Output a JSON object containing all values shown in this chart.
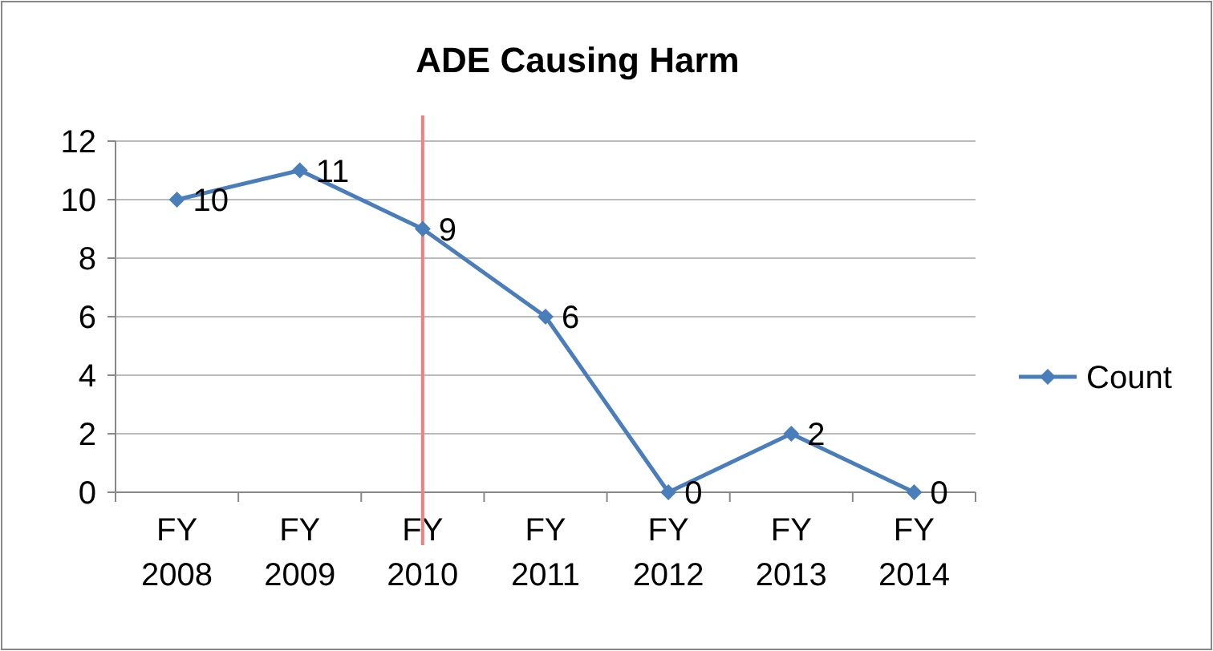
{
  "chart_data": {
    "type": "line",
    "title": "ADE Causing Harm",
    "categories": [
      "FY 2008",
      "FY 2009",
      "FY 2010",
      "FY 2011",
      "FY 2012",
      "FY 2013",
      "FY 2014"
    ],
    "series": [
      {
        "name": "Count",
        "color": "#4a7ebb",
        "values": [
          10,
          11,
          9,
          6,
          0,
          2,
          0
        ]
      }
    ],
    "ylim": [
      0,
      12
    ],
    "yticks": [
      0,
      2,
      4,
      6,
      8,
      10,
      12
    ],
    "ref_lines": [
      {
        "axis": "x",
        "value": "FY 2010",
        "color": "#f08080"
      }
    ],
    "grid": "y",
    "legend": "right",
    "marker": "diamond",
    "line_style": "solid",
    "data_labels": true
  }
}
